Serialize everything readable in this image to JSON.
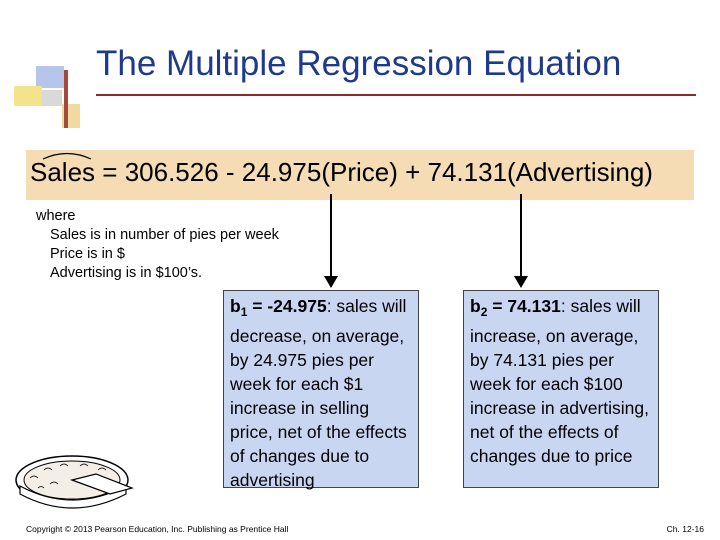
{
  "slide": {
    "title": "The Multiple Regression Equation",
    "equation": {
      "lhs": "Sales",
      "rhs": "306.526 - 24.975(Price) + 74.131(Advertising)"
    },
    "where": {
      "heading": "where",
      "lines": [
        "Sales is in number of pies per week",
        "Price is in $",
        "Advertising is in $100’s."
      ]
    },
    "box1": {
      "coef": "b",
      "sub": "1",
      "value": " = -24.975",
      "text": ": sales will decrease, on average, by 24.975 pies per week for each $1 increase in selling price, net of the effects of changes due to advertising"
    },
    "box2": {
      "coef": "b",
      "sub": "2",
      "value": " = 74.131",
      "text": ": sales will increase, on average, by 74.131 pies per week for each $100 increase in advertising, net of the effects of changes due to price"
    },
    "footer": {
      "copyright": "Copyright © 2013 Pearson Education, Inc. Publishing as Prentice Hall",
      "page": "Ch. 12-16"
    },
    "colors": {
      "title": "#1f3a8a",
      "equation_band": "#f6dcb4",
      "box_fill": "#c9d6f2"
    }
  }
}
